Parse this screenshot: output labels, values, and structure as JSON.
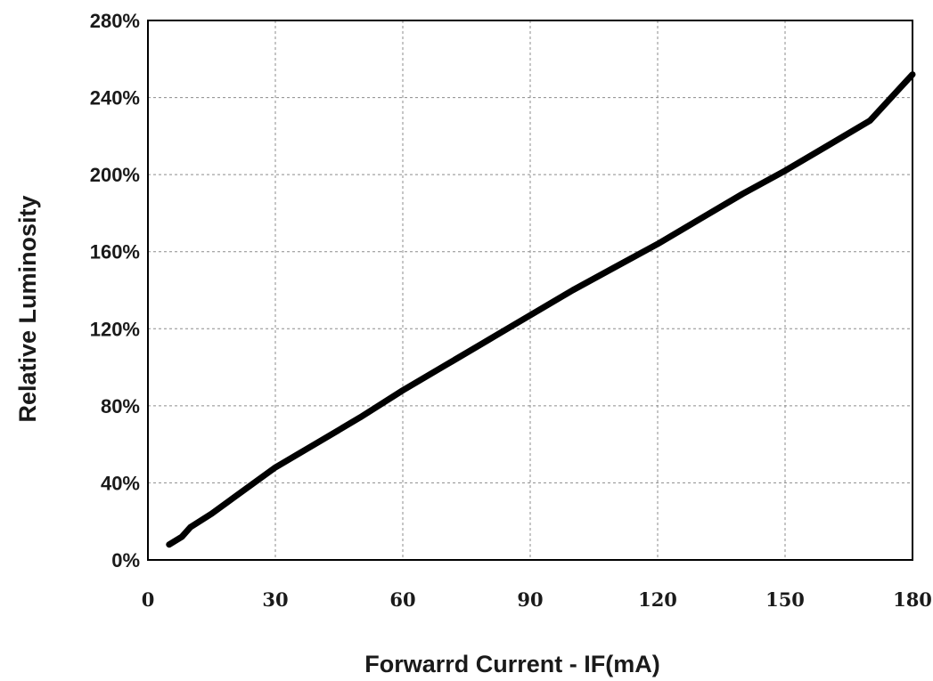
{
  "chart_data": {
    "type": "line",
    "title": "",
    "xlabel": "Forwarrd Current - IF(mA)",
    "ylabel": "Relative Luminosity",
    "xlim": [
      0,
      180
    ],
    "ylim": [
      0,
      280
    ],
    "x_ticks": [
      0,
      30,
      60,
      90,
      120,
      150,
      180
    ],
    "x_tick_labels": [
      "0",
      "30",
      "60",
      "90",
      "120",
      "150",
      "180"
    ],
    "y_ticks": [
      0,
      40,
      80,
      120,
      160,
      200,
      240,
      280
    ],
    "y_tick_labels": [
      "0%",
      "40%",
      "80%",
      "120%",
      "160%",
      "200%",
      "240%",
      "280%"
    ],
    "grid": true,
    "legend": "none",
    "series": [
      {
        "color": "#000000",
        "x": [
          5,
          8,
          10,
          15,
          20,
          30,
          40,
          50,
          60,
          70,
          80,
          90,
          100,
          110,
          120,
          130,
          140,
          150,
          160,
          170,
          180
        ],
        "y": [
          8,
          12,
          17,
          24,
          32,
          48,
          61,
          74,
          88,
          101,
          114,
          127,
          140,
          152,
          164,
          177,
          190,
          202,
          215,
          228,
          252
        ]
      }
    ]
  }
}
